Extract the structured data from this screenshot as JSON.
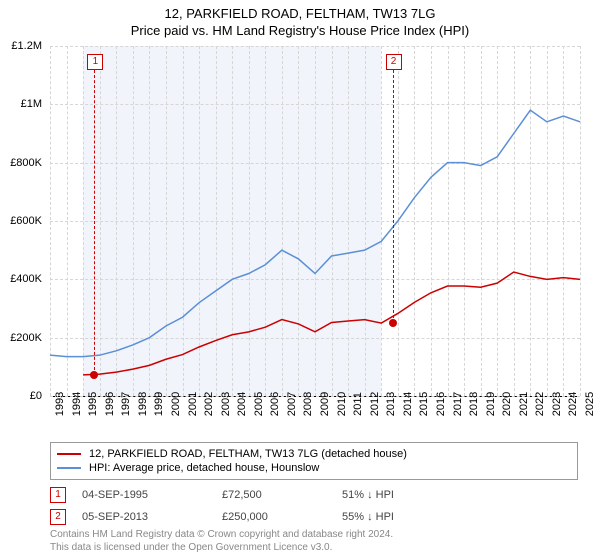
{
  "titles": {
    "line1": "12, PARKFIELD ROAD, FELTHAM, TW13 7LG",
    "line2": "Price paid vs. HM Land Registry's House Price Index (HPI)"
  },
  "chart": {
    "type": "line",
    "background_color": "#ffffff",
    "shade_color": "#f1f5fb",
    "grid_color": "#d6d6d6",
    "x_years": [
      1993,
      1994,
      1995,
      1996,
      1997,
      1998,
      1999,
      2000,
      2001,
      2002,
      2003,
      2004,
      2005,
      2006,
      2007,
      2008,
      2009,
      2010,
      2011,
      2012,
      2013,
      2014,
      2015,
      2016,
      2017,
      2018,
      2019,
      2020,
      2021,
      2022,
      2023,
      2024,
      2025
    ],
    "x_shade_start": 1995,
    "x_shade_end": 2013,
    "y_ticks": [
      0,
      200000,
      400000,
      600000,
      800000,
      1000000,
      1200000
    ],
    "y_tick_labels": [
      "£0",
      "£200K",
      "£400K",
      "£600K",
      "£800K",
      "£1M",
      "£1.2M"
    ],
    "ylim": [
      0,
      1200000
    ],
    "axis_fontsize": 11,
    "title_fontsize": 13,
    "series": [
      {
        "name": "hpi",
        "label": "HPI: Average price, detached house, Hounslow",
        "color": "#5b8fd6",
        "line_width": 1.5,
        "points": [
          [
            1993,
            140000
          ],
          [
            1994,
            135000
          ],
          [
            1995,
            135000
          ],
          [
            1996,
            140000
          ],
          [
            1997,
            155000
          ],
          [
            1998,
            175000
          ],
          [
            1999,
            200000
          ],
          [
            2000,
            240000
          ],
          [
            2001,
            270000
          ],
          [
            2002,
            320000
          ],
          [
            2003,
            360000
          ],
          [
            2004,
            400000
          ],
          [
            2005,
            420000
          ],
          [
            2006,
            450000
          ],
          [
            2007,
            500000
          ],
          [
            2008,
            470000
          ],
          [
            2009,
            420000
          ],
          [
            2010,
            480000
          ],
          [
            2011,
            490000
          ],
          [
            2012,
            500000
          ],
          [
            2013,
            530000
          ],
          [
            2014,
            600000
          ],
          [
            2015,
            680000
          ],
          [
            2016,
            750000
          ],
          [
            2017,
            800000
          ],
          [
            2018,
            800000
          ],
          [
            2019,
            790000
          ],
          [
            2020,
            820000
          ],
          [
            2021,
            900000
          ],
          [
            2022,
            980000
          ],
          [
            2023,
            940000
          ],
          [
            2024,
            960000
          ],
          [
            2025,
            940000
          ]
        ]
      },
      {
        "name": "property",
        "label": "12, PARKFIELD ROAD, FELTHAM, TW13 7LG (detached house)",
        "color": "#cc0000",
        "line_width": 1.5,
        "points": [
          [
            1995,
            72500
          ],
          [
            1996,
            75000
          ],
          [
            1997,
            82000
          ],
          [
            1998,
            92000
          ],
          [
            1999,
            105000
          ],
          [
            2000,
            126000
          ],
          [
            2001,
            142000
          ],
          [
            2002,
            168000
          ],
          [
            2003,
            190000
          ],
          [
            2004,
            210000
          ],
          [
            2005,
            220000
          ],
          [
            2006,
            236000
          ],
          [
            2007,
            262000
          ],
          [
            2008,
            247000
          ],
          [
            2009,
            220000
          ],
          [
            2010,
            252000
          ],
          [
            2011,
            257000
          ],
          [
            2012,
            262000
          ],
          [
            2013,
            250000
          ],
          [
            2014,
            283000
          ],
          [
            2015,
            321000
          ],
          [
            2016,
            354000
          ],
          [
            2017,
            377000
          ],
          [
            2018,
            377000
          ],
          [
            2019,
            373000
          ],
          [
            2020,
            387000
          ],
          [
            2021,
            425000
          ],
          [
            2022,
            410000
          ],
          [
            2023,
            400000
          ],
          [
            2024,
            406000
          ],
          [
            2025,
            400000
          ]
        ]
      }
    ],
    "markers": [
      {
        "n": "1",
        "year": 1995.68,
        "price": 72500,
        "color": "#cc0000"
      },
      {
        "n": "2",
        "year": 2013.68,
        "price": 250000,
        "color": "#cc0000"
      }
    ]
  },
  "legend": {
    "items": [
      {
        "color": "#cc0000",
        "label": "12, PARKFIELD ROAD, FELTHAM, TW13 7LG (detached house)"
      },
      {
        "color": "#5b8fd6",
        "label": "HPI: Average price, detached house, Hounslow"
      }
    ]
  },
  "sales": [
    {
      "n": "1",
      "color": "#cc0000",
      "date": "04-SEP-1995",
      "price": "£72,500",
      "hpi": "51% ↓ HPI"
    },
    {
      "n": "2",
      "color": "#cc0000",
      "date": "05-SEP-2013",
      "price": "£250,000",
      "hpi": "55% ↓ HPI"
    }
  ],
  "footer": {
    "line1": "Contains HM Land Registry data © Crown copyright and database right 2024.",
    "line2": "This data is licensed under the Open Government Licence v3.0."
  }
}
